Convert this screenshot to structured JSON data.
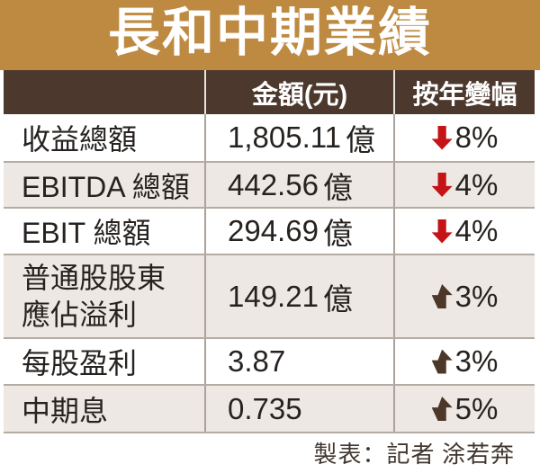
{
  "title": "長和中期業績",
  "table": {
    "headers": [
      "",
      "金額(元)",
      "按年變幅"
    ],
    "rows": [
      {
        "label": "收益總額",
        "amount": "1,805.11",
        "unit": "億",
        "direction": "down",
        "change": "8%"
      },
      {
        "label": "EBITDA 總額",
        "amount": "442.56",
        "unit": "億",
        "direction": "down",
        "change": "4%"
      },
      {
        "label": "EBIT 總額",
        "amount": "294.69",
        "unit": "億",
        "direction": "down",
        "change": "4%"
      },
      {
        "label_line1": "普通股股東",
        "label_line2": "應佔溢利",
        "amount": "149.21",
        "unit": "億",
        "direction": "up",
        "change": "3%"
      },
      {
        "label": "每股盈利",
        "amount": "3.87",
        "unit": "",
        "direction": "up",
        "change": "3%"
      },
      {
        "label": "中期息",
        "amount": "0.735",
        "unit": "",
        "direction": "up",
        "change": "5%"
      }
    ]
  },
  "footer": "製表：記者 涂若奔",
  "colors": {
    "title_bg": "#BE8A42",
    "header_bg": "#4C382D",
    "row_alt_bg": "#EDE8E3",
    "down_arrow_red": "#C41418",
    "up_arrow_brown": "#4D3729",
    "body_text": "#262220",
    "border": "#B4ABA3"
  },
  "chart_data": {
    "type": "table",
    "title": "長和中期業績",
    "columns": [
      "",
      "金額(元)",
      "按年變幅"
    ],
    "rows": [
      [
        "收益總額",
        "1,805.11億",
        "-8%"
      ],
      [
        "EBITDA 總額",
        "442.56億",
        "-4%"
      ],
      [
        "EBIT 總額",
        "294.69億",
        "-4%"
      ],
      [
        "普通股股東應佔溢利",
        "149.21億",
        "+3%"
      ],
      [
        "每股盈利",
        "3.87",
        "+3%"
      ],
      [
        "中期息",
        "0.735",
        "+5%"
      ]
    ],
    "credit": "製表：記者 涂若奔"
  }
}
